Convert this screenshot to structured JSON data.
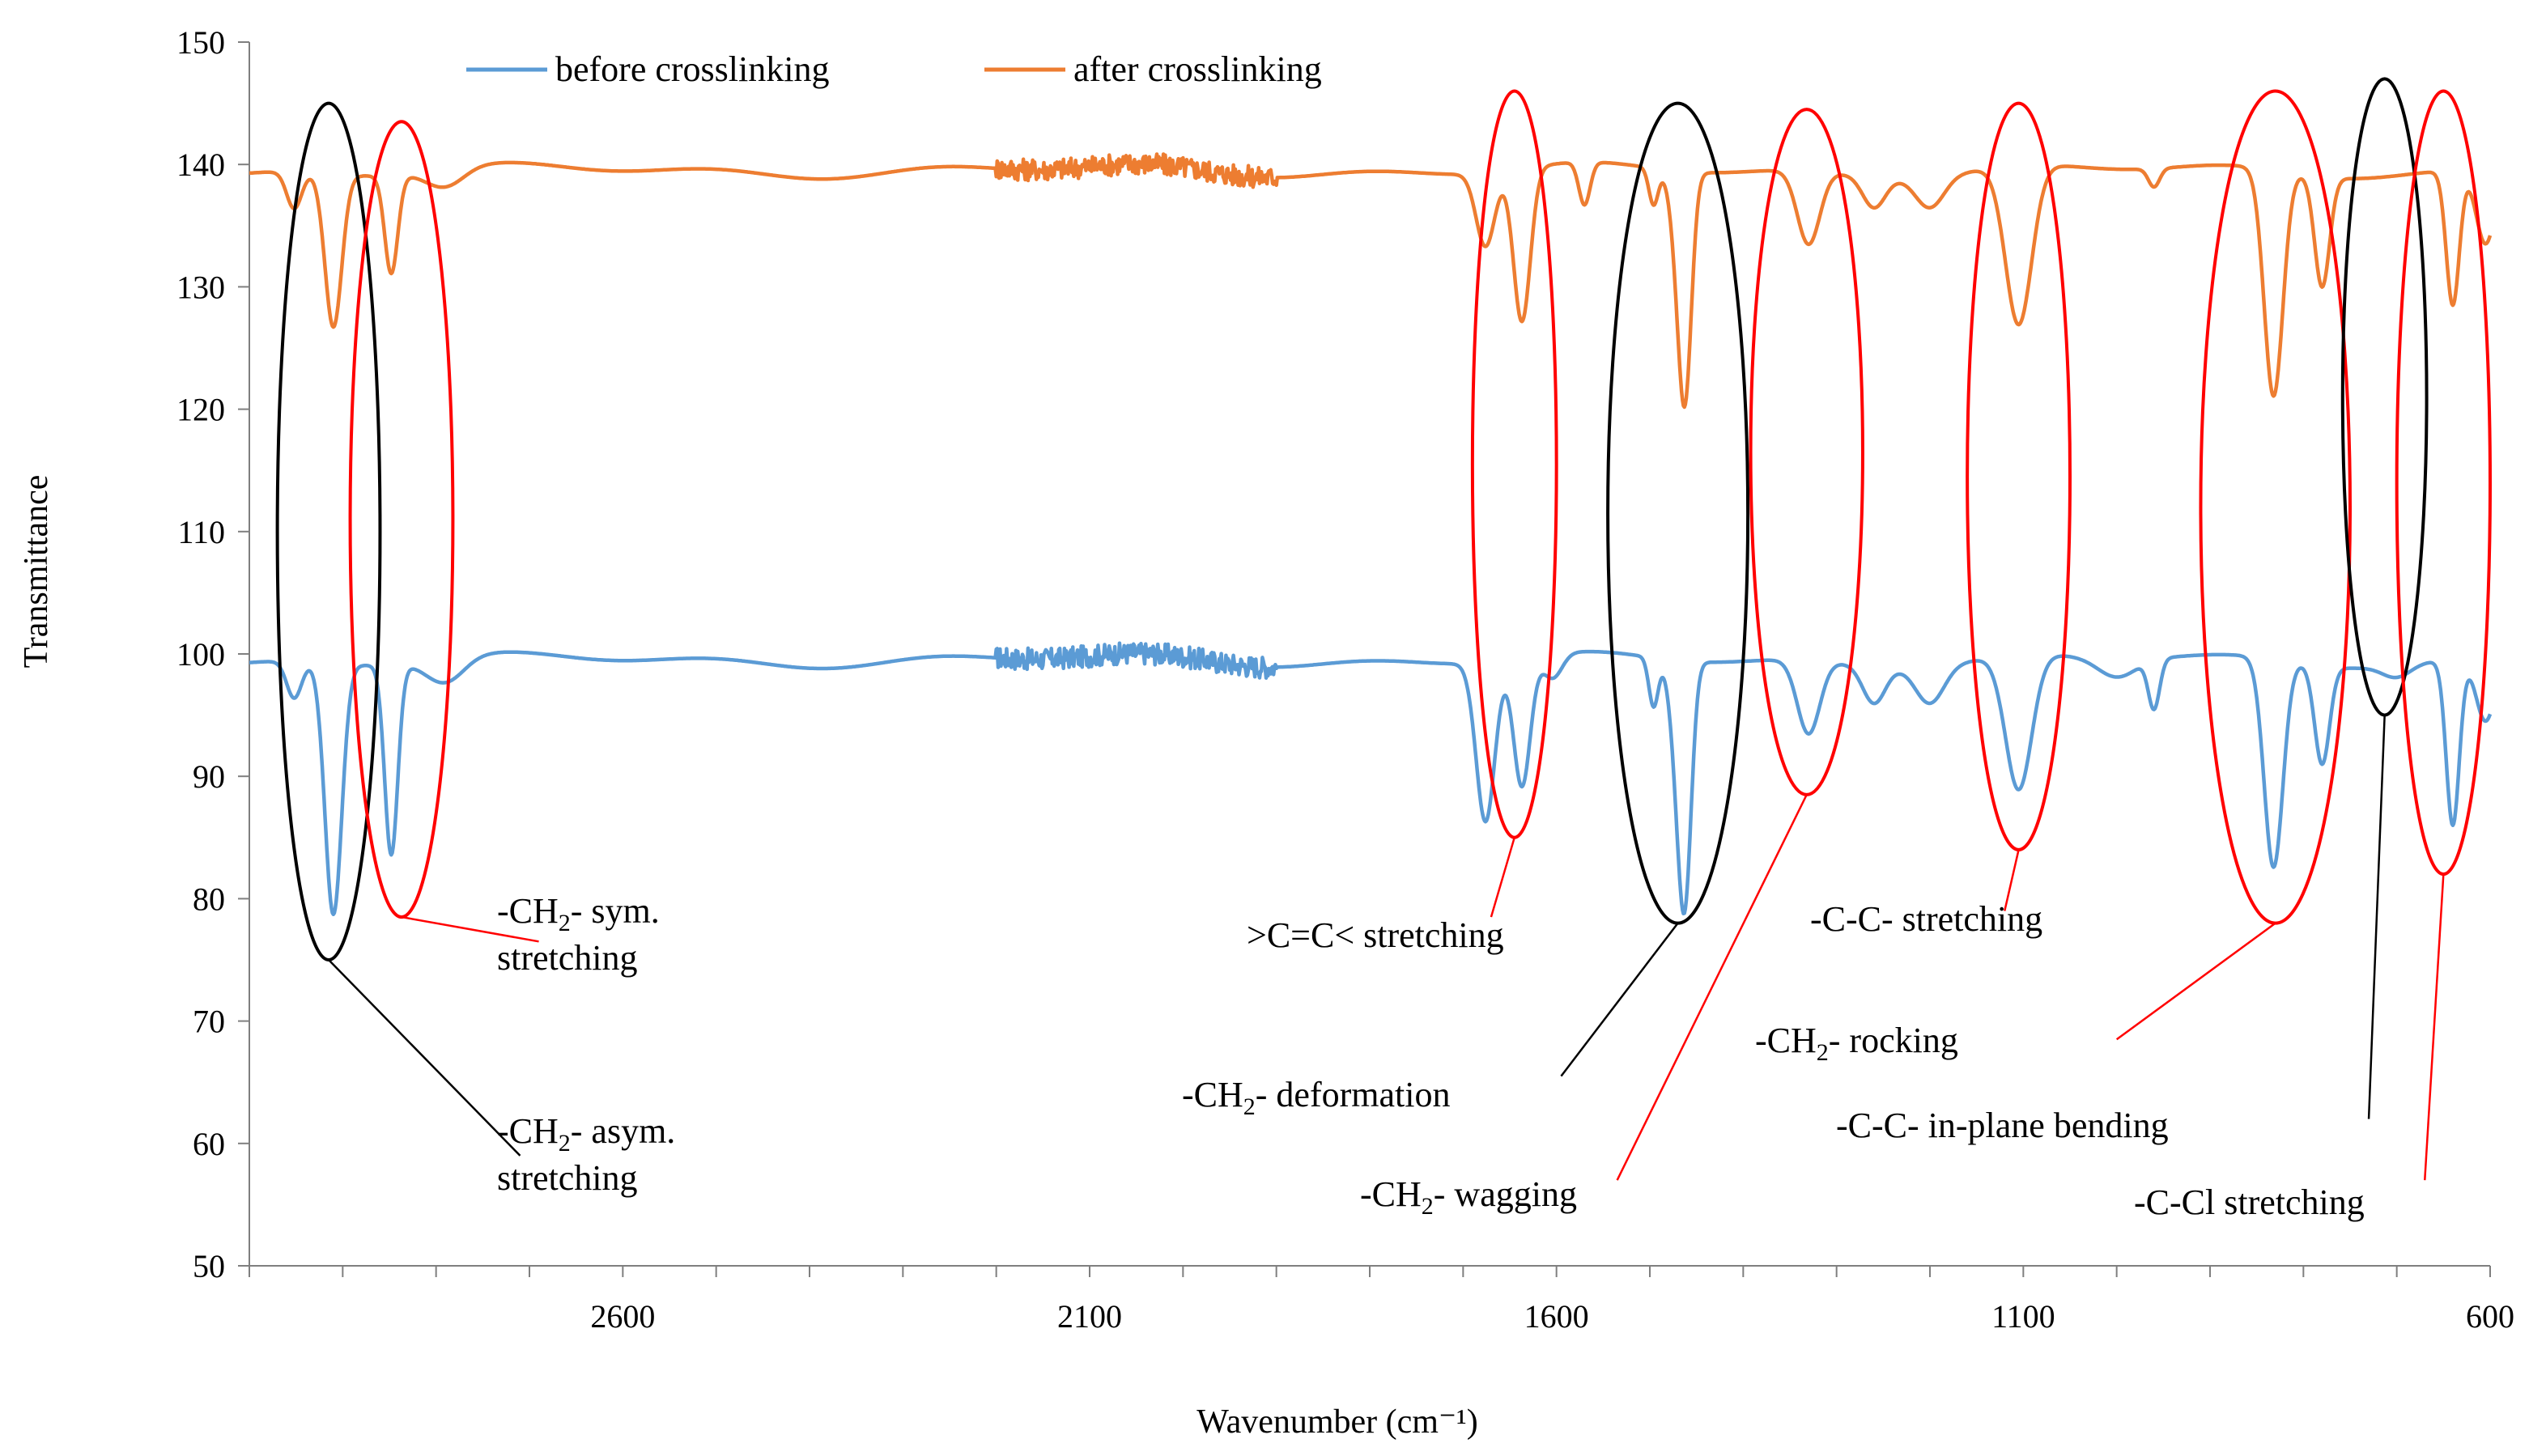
{
  "chart_data": {
    "type": "line",
    "xlabel": "Wavenumber (cm⁻¹)",
    "ylabel": "Transmittance",
    "xlim": [
      3000,
      600
    ],
    "ylim": [
      50,
      150
    ],
    "x_ticks": [
      2600,
      2100,
      1600,
      1100,
      600
    ],
    "y_ticks": [
      50,
      60,
      70,
      80,
      90,
      100,
      110,
      120,
      130,
      140,
      150
    ],
    "legend_position": "top",
    "series": [
      {
        "name": "before crosslinking",
        "color": "#5B9BD5",
        "baseline": 99.5,
        "noise_regions": [
          [
            2200,
            1900,
            0.9
          ]
        ],
        "dips": [
          [
            2910,
            20.5,
            9
          ],
          [
            2848,
            15.5,
            7
          ],
          [
            2952,
            3,
            8
          ],
          [
            2790,
            2,
            20
          ],
          [
            1676,
            13,
            10
          ],
          [
            1637,
            10.5,
            9
          ],
          [
            1604,
            2,
            10
          ],
          [
            1462,
            16,
            7
          ],
          [
            1470,
            7,
            8
          ],
          [
            1496,
            4,
            5
          ],
          [
            1330,
            6,
            12
          ],
          [
            1260,
            3,
            12
          ],
          [
            1200,
            3,
            15
          ],
          [
            1105,
            11,
            14
          ],
          [
            1000,
            1.5,
            20
          ],
          [
            960,
            4,
            6
          ],
          [
            832,
            17,
            10
          ],
          [
            780,
            8,
            8
          ],
          [
            700,
            1,
            15
          ],
          [
            640,
            13.5,
            7
          ],
          [
            605,
            5,
            10
          ]
        ]
      },
      {
        "name": "after crosslinking",
        "color": "#ED7D31",
        "baseline": 139.5,
        "noise_regions": [
          [
            2200,
            1900,
            0.9
          ]
        ],
        "dips": [
          [
            2910,
            12.5,
            9
          ],
          [
            2848,
            8,
            7
          ],
          [
            2952,
            3,
            8
          ],
          [
            2790,
            1.5,
            20
          ],
          [
            1676,
            6,
            10
          ],
          [
            1637,
            12.5,
            9
          ],
          [
            1570,
            3.5,
            6
          ],
          [
            1462,
            16,
            7
          ],
          [
            1470,
            5,
            8
          ],
          [
            1496,
            3,
            5
          ],
          [
            1330,
            6,
            12
          ],
          [
            1260,
            2.5,
            12
          ],
          [
            1200,
            2.5,
            15
          ],
          [
            1105,
            13,
            14
          ],
          [
            960,
            1.5,
            6
          ],
          [
            832,
            18.5,
            10
          ],
          [
            780,
            9,
            8
          ],
          [
            640,
            11,
            7
          ],
          [
            605,
            6,
            10
          ]
        ]
      }
    ],
    "ellipses": [
      {
        "cx": 2915,
        "cy": 110,
        "rx": 55,
        "ry": 35,
        "color": "black"
      },
      {
        "cx": 2837,
        "cy": 111,
        "rx": 55,
        "ry": 32.5,
        "color": "red"
      },
      {
        "cx": 1645,
        "cy": 115.5,
        "rx": 45,
        "ry": 30.5,
        "color": "red"
      },
      {
        "cx": 1470,
        "cy": 111.5,
        "rx": 75,
        "ry": 33.5,
        "color": "black"
      },
      {
        "cx": 1332,
        "cy": 116.5,
        "rx": 60,
        "ry": 28,
        "color": "red"
      },
      {
        "cx": 1105,
        "cy": 114.5,
        "rx": 55,
        "ry": 30.5,
        "color": "red"
      },
      {
        "cx": 830,
        "cy": 112,
        "rx": 80,
        "ry": 34,
        "color": "red"
      },
      {
        "cx": 713,
        "cy": 121,
        "rx": 45,
        "ry": 26,
        "color": "black"
      },
      {
        "cx": 650,
        "cy": 114,
        "rx": 50,
        "ry": 32,
        "color": "red"
      }
    ],
    "annotations": [
      {
        "label_parts": [
          "-CH",
          "2",
          "- sym."
        ],
        "label_line2": "stretching",
        "color": "red",
        "from": [
          2837,
          78.5
        ],
        "to": [
          2690,
          76.5
        ]
      },
      {
        "label_parts": [
          "-CH",
          "2",
          "- asym."
        ],
        "label_line2": "stretching",
        "color": "black",
        "from": [
          2915,
          75
        ],
        "to": [
          2710,
          59
        ]
      },
      {
        "label_parts": [
          ">C=C< stretching"
        ],
        "label_line2": "",
        "color": "red",
        "from": [
          1645,
          85
        ],
        "to": [
          1670,
          78.5
        ]
      },
      {
        "label_parts": [
          "-CH",
          "2",
          "- deformation"
        ],
        "label_line2": "",
        "color": "black",
        "from": [
          1470,
          78
        ],
        "to": [
          1595,
          65.5
        ]
      },
      {
        "label_parts": [
          "-CH",
          "2",
          "- wagging"
        ],
        "label_line2": "",
        "color": "red",
        "from": [
          1332,
          88.5
        ],
        "to": [
          1535,
          57
        ]
      },
      {
        "label_parts": [
          "-C-C- stretching"
        ],
        "label_line2": "",
        "color": "red",
        "from": [
          1105,
          84
        ],
        "to": [
          1120,
          79
        ]
      },
      {
        "label_parts": [
          "-CH",
          "2",
          "- rocking"
        ],
        "label_line2": "",
        "color": "red",
        "from": [
          830,
          78
        ],
        "to": [
          1000,
          68.5
        ]
      },
      {
        "label_parts": [
          "-C-C- in-plane bending"
        ],
        "label_line2": "",
        "color": "black",
        "from": [
          713,
          95
        ],
        "to": [
          730,
          62
        ]
      },
      {
        "label_parts": [
          "-C-Cl stretching"
        ],
        "label_line2": "",
        "color": "red",
        "from": [
          650,
          82
        ],
        "to": [
          670,
          57
        ]
      }
    ]
  }
}
